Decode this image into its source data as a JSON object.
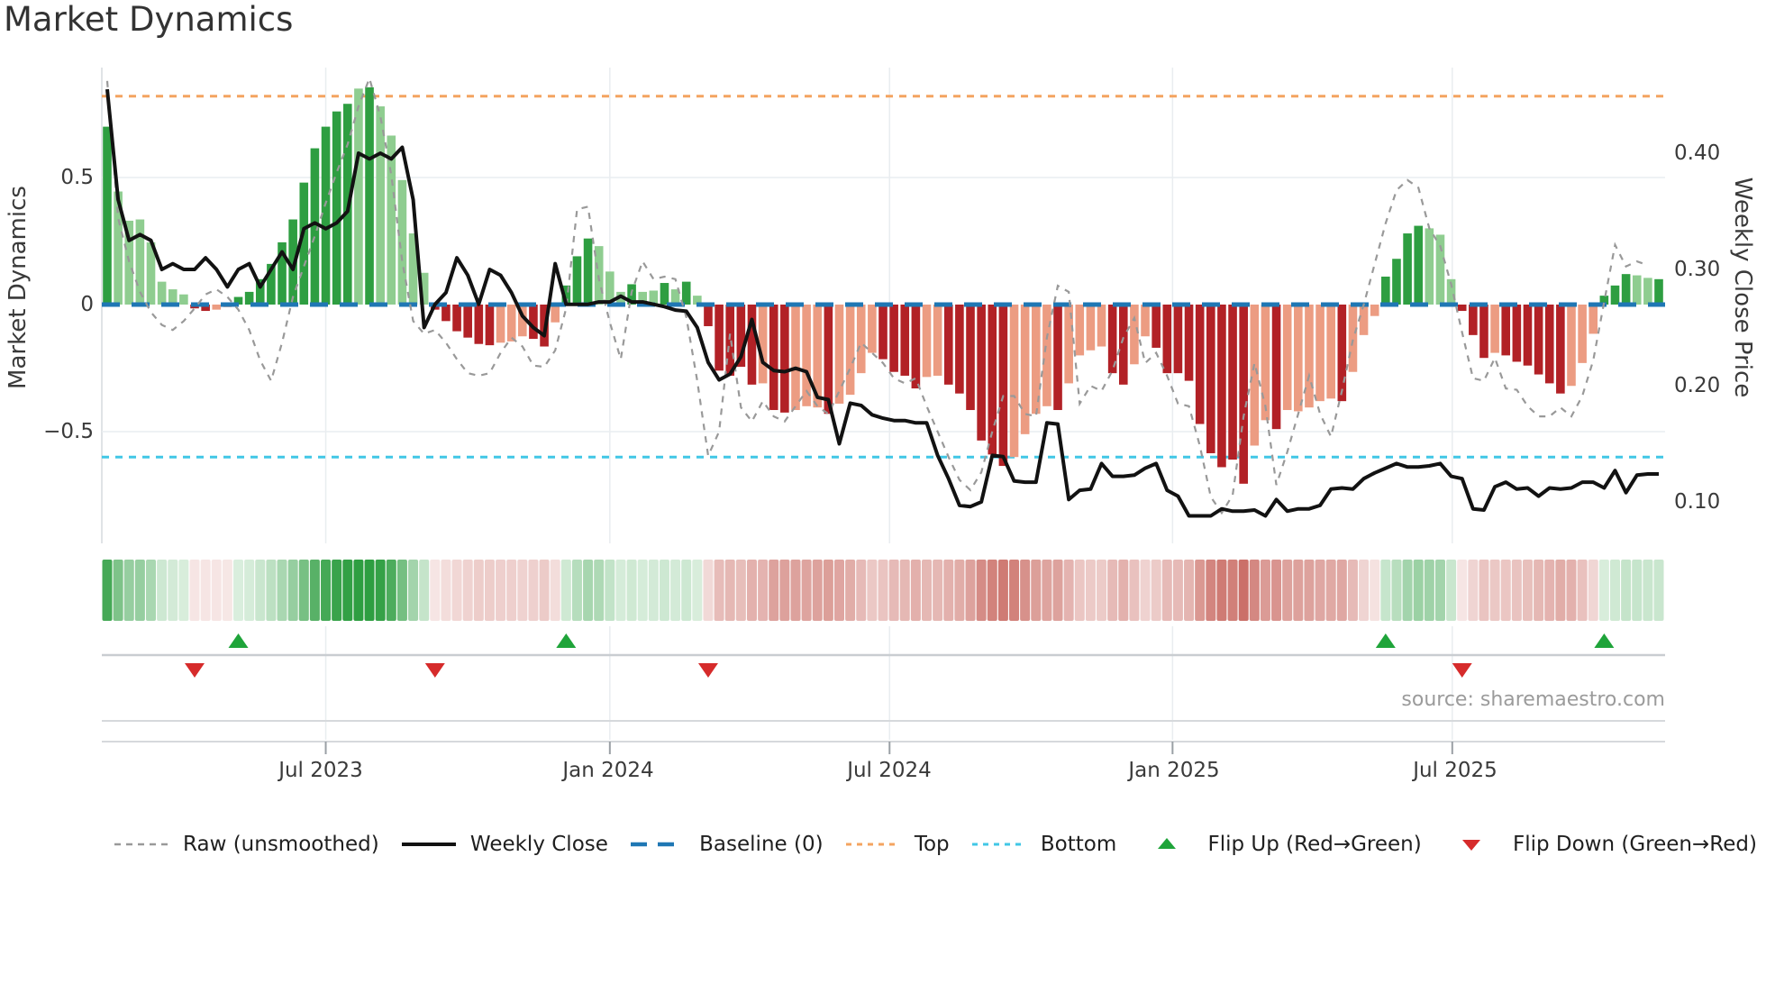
{
  "title": "Market Dynamics",
  "source_text": "source: sharemaestro.com",
  "colors": {
    "bar_pos_strong": "#2e9e41",
    "bar_pos_soft": "#8fcd90",
    "bar_neg_strong": "#b22126",
    "bar_neg_soft": "#ec9c82",
    "baseline": "#1f77b4",
    "top_line": "#f4a460",
    "bottom_line": "#41c7e6",
    "raw_line": "#999999",
    "close_line": "#121212",
    "flip_up": "#1fa43a",
    "flip_down": "#d62b2b",
    "grid": "#e9edf0",
    "spine": "#d9dcdf",
    "rule": "#c9cdd1",
    "rule_soft": "#d6d9dc",
    "axis_tick": "#9aa0a5",
    "heat_pos_rgb": "46,158,65",
    "heat_neg_rgb": "193,83,74",
    "text": "#3a3a3a",
    "muted": "#9b9b9b"
  },
  "chart_data": {
    "type": "bar",
    "combo": [
      "bar",
      "line",
      "line",
      "heat-strip",
      "event-markers"
    ],
    "title": "Market Dynamics",
    "ylabel_left": "Market Dynamics",
    "ylabel_right": "Weekly Close Price",
    "ylim_left": [
      -0.95,
      0.95
    ],
    "ylim_right": [
      0.064,
      0.474
    ],
    "baseline": 0,
    "top_line": 0.82,
    "bottom_line": -0.6,
    "legend_position": "bottom",
    "grid": "horizontal at ±0.5 (left axis), vertical at half-year ticks",
    "left_ticks": [
      {
        "label": "0.5",
        "value": 0.5
      },
      {
        "label": "0",
        "value": 0
      },
      {
        "label": "−0.5",
        "value": -0.5
      }
    ],
    "right_ticks": [
      {
        "label": "0.40",
        "value": 0.4
      },
      {
        "label": "0.30",
        "value": 0.3
      },
      {
        "label": "0.20",
        "value": 0.2
      },
      {
        "label": "0.10",
        "value": 0.1
      }
    ],
    "x_ticks": [
      {
        "label": "Jul 2023",
        "week": 20
      },
      {
        "label": "Jan 2024",
        "week": 46
      },
      {
        "label": "Jul 2024",
        "week": 71.6
      },
      {
        "label": "Jan 2025",
        "week": 97.5
      },
      {
        "label": "Jul 2025",
        "week": 123.1
      }
    ],
    "weeks": 143,
    "series": [
      {
        "name": "Market Dynamics oscillator (weekly bars)",
        "type": "bar",
        "axis": "left",
        "values": [
          0.7,
          0.445,
          0.33,
          0.335,
          0.245,
          0.09,
          0.06,
          0.04,
          -0.015,
          -0.025,
          -0.02,
          -0.01,
          0.03,
          0.05,
          0.1,
          0.16,
          0.245,
          0.335,
          0.48,
          0.615,
          0.7,
          0.76,
          0.79,
          0.85,
          0.855,
          0.78,
          0.665,
          0.49,
          0.28,
          0.125,
          -0.02,
          -0.065,
          -0.105,
          -0.13,
          -0.155,
          -0.16,
          -0.15,
          -0.145,
          -0.125,
          -0.135,
          -0.165,
          -0.07,
          0.075,
          0.19,
          0.26,
          0.23,
          0.13,
          0.05,
          0.08,
          0.05,
          0.055,
          0.085,
          0.06,
          0.09,
          0.035,
          -0.085,
          -0.26,
          -0.28,
          -0.245,
          -0.315,
          -0.31,
          -0.415,
          -0.425,
          -0.415,
          -0.4,
          -0.405,
          -0.43,
          -0.39,
          -0.355,
          -0.27,
          -0.19,
          -0.215,
          -0.265,
          -0.28,
          -0.33,
          -0.285,
          -0.28,
          -0.315,
          -0.35,
          -0.415,
          -0.535,
          -0.59,
          -0.635,
          -0.6,
          -0.51,
          -0.43,
          -0.4,
          -0.415,
          -0.31,
          -0.2,
          -0.18,
          -0.165,
          -0.27,
          -0.315,
          -0.235,
          -0.125,
          -0.17,
          -0.27,
          -0.27,
          -0.3,
          -0.47,
          -0.585,
          -0.64,
          -0.61,
          -0.705,
          -0.555,
          -0.455,
          -0.49,
          -0.415,
          -0.42,
          -0.405,
          -0.38,
          -0.37,
          -0.38,
          -0.265,
          -0.12,
          -0.045,
          0.11,
          0.18,
          0.28,
          0.31,
          0.3,
          0.275,
          0.1,
          -0.025,
          -0.12,
          -0.21,
          -0.19,
          -0.2,
          -0.225,
          -0.24,
          -0.275,
          -0.31,
          -0.35,
          -0.32,
          -0.23,
          -0.115,
          0.035,
          0.075,
          0.12,
          0.115,
          0.105,
          0.1
        ],
        "strength": "dlllllllddllddddddddddtldlllllddddddlllddldddllldlldldldddddlddllldllllddddllddddddlllldllllddlldddddddddlldllllldlllddddllldddlddddddllldddlld"
      },
      {
        "name": "Raw (unsmoothed)",
        "type": "line",
        "axis": "left",
        "values": [
          0.88,
          0.34,
          0.17,
          0.05,
          -0.03,
          -0.08,
          -0.1,
          -0.065,
          -0.015,
          0.04,
          0.06,
          0.03,
          -0.02,
          -0.1,
          -0.22,
          -0.3,
          -0.15,
          0.03,
          0.15,
          0.27,
          0.4,
          0.52,
          0.63,
          0.78,
          0.89,
          0.74,
          0.51,
          0.17,
          -0.065,
          -0.115,
          -0.1,
          -0.15,
          -0.215,
          -0.27,
          -0.28,
          -0.27,
          -0.19,
          -0.13,
          -0.165,
          -0.24,
          -0.245,
          -0.18,
          -0.015,
          0.375,
          0.385,
          0.1,
          -0.07,
          -0.215,
          0.05,
          0.17,
          0.1,
          0.11,
          0.1,
          -0.05,
          -0.3,
          -0.595,
          -0.5,
          -0.115,
          -0.405,
          -0.46,
          -0.38,
          -0.44,
          -0.46,
          -0.4,
          -0.34,
          -0.4,
          -0.43,
          -0.34,
          -0.25,
          -0.15,
          -0.19,
          -0.23,
          -0.29,
          -0.31,
          -0.29,
          -0.4,
          -0.5,
          -0.6,
          -0.69,
          -0.73,
          -0.66,
          -0.5,
          -0.36,
          -0.36,
          -0.43,
          -0.44,
          -0.13,
          0.074,
          0.05,
          -0.39,
          -0.32,
          -0.34,
          -0.26,
          -0.13,
          -0.053,
          -0.23,
          -0.19,
          -0.28,
          -0.39,
          -0.4,
          -0.556,
          -0.757,
          -0.82,
          -0.75,
          -0.44,
          -0.23,
          -0.4,
          -0.71,
          -0.58,
          -0.43,
          -0.28,
          -0.43,
          -0.52,
          -0.34,
          -0.14,
          0.0,
          0.16,
          0.32,
          0.45,
          0.49,
          0.46,
          0.3,
          0.23,
          0.08,
          -0.11,
          -0.29,
          -0.3,
          -0.21,
          -0.33,
          -0.335,
          -0.4,
          -0.44,
          -0.44,
          -0.405,
          -0.44,
          -0.36,
          -0.22,
          0.01,
          0.235,
          0.15,
          0.17,
          0.155
        ]
      },
      {
        "name": "Weekly Close",
        "type": "line",
        "axis": "right",
        "values": [
          0.455,
          0.36,
          0.325,
          0.33,
          0.325,
          0.3,
          0.305,
          0.3,
          0.3,
          0.31,
          0.3,
          0.285,
          0.3,
          0.305,
          0.285,
          0.3,
          0.315,
          0.3,
          0.335,
          0.34,
          0.335,
          0.34,
          0.35,
          0.4,
          0.395,
          0.4,
          0.395,
          0.405,
          0.36,
          0.25,
          0.27,
          0.28,
          0.31,
          0.295,
          0.27,
          0.3,
          0.295,
          0.28,
          0.26,
          0.25,
          0.243,
          0.305,
          0.27,
          0.27,
          0.27,
          0.272,
          0.272,
          0.277,
          0.272,
          0.272,
          0.27,
          0.268,
          0.265,
          0.264,
          0.25,
          0.22,
          0.205,
          0.21,
          0.225,
          0.257,
          0.22,
          0.213,
          0.212,
          0.215,
          0.212,
          0.19,
          0.188,
          0.15,
          0.185,
          0.183,
          0.175,
          0.172,
          0.17,
          0.17,
          0.168,
          0.168,
          0.14,
          0.12,
          0.097,
          0.096,
          0.1,
          0.14,
          0.139,
          0.118,
          0.117,
          0.117,
          0.168,
          0.167,
          0.102,
          0.11,
          0.111,
          0.133,
          0.122,
          0.122,
          0.123,
          0.129,
          0.133,
          0.11,
          0.105,
          0.088,
          0.088,
          0.088,
          0.094,
          0.092,
          0.092,
          0.093,
          0.088,
          0.102,
          0.092,
          0.094,
          0.094,
          0.097,
          0.111,
          0.112,
          0.111,
          0.12,
          0.125,
          0.129,
          0.133,
          0.13,
          0.13,
          0.131,
          0.133,
          0.122,
          0.12,
          0.094,
          0.093,
          0.113,
          0.117,
          0.111,
          0.112,
          0.105,
          0.112,
          0.111,
          0.112,
          0.117,
          0.117,
          0.112,
          0.127,
          0.108,
          0.123,
          0.124,
          0.124
        ]
      }
    ],
    "flip_up_weeks": [
      12,
      42,
      117,
      137
    ],
    "flip_down_weeks": [
      8,
      30,
      55,
      124
    ]
  },
  "legend": {
    "items": [
      {
        "label": "Raw (unsmoothed)",
        "sym": "raw"
      },
      {
        "label": "Weekly Close",
        "sym": "close"
      },
      {
        "label": "Baseline (0)",
        "sym": "baseline"
      },
      {
        "label": "Top",
        "sym": "top"
      },
      {
        "label": "Bottom",
        "sym": "bottom"
      },
      {
        "label": "Flip Up (Red→Green)",
        "sym": "flip-up"
      },
      {
        "label": "Flip Down (Green→Red)",
        "sym": "flip-down"
      }
    ]
  }
}
